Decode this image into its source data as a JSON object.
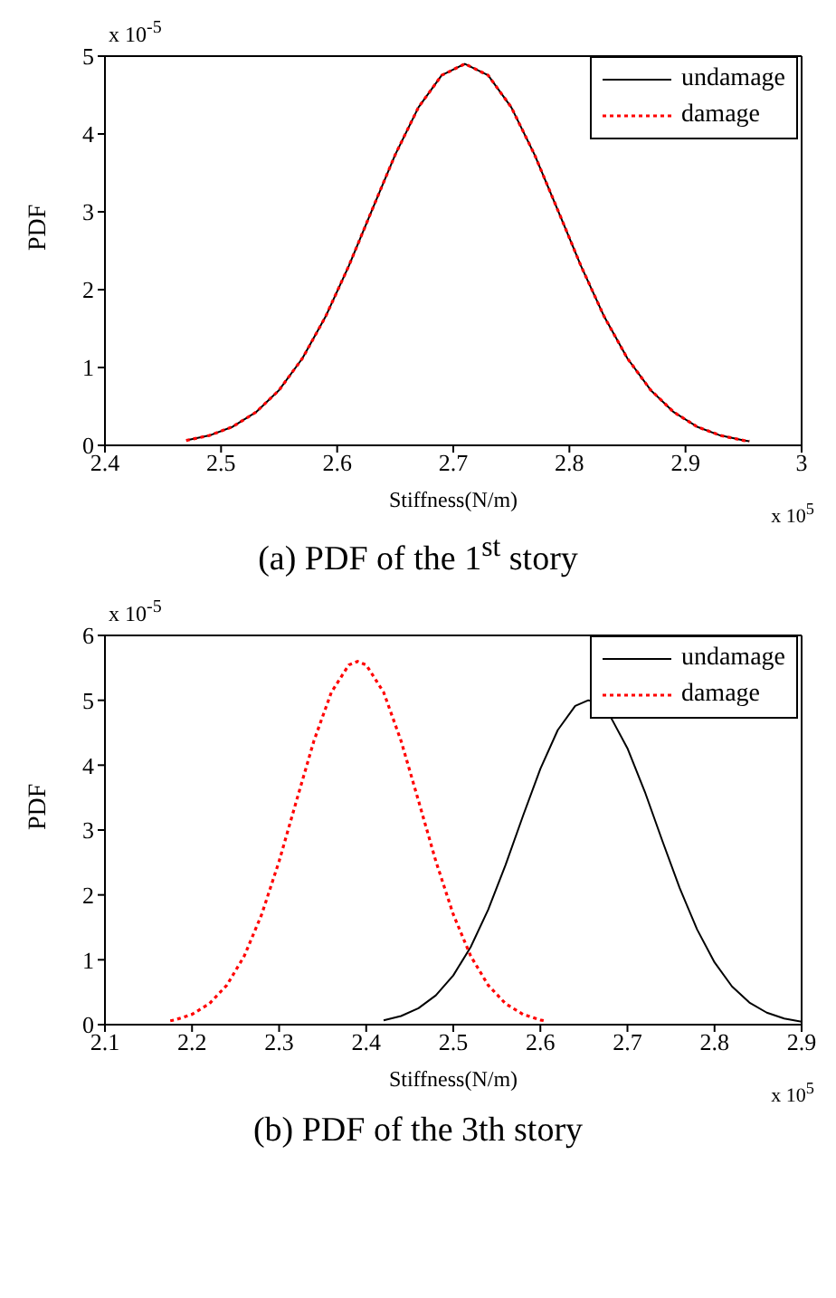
{
  "chart_data": [
    {
      "type": "line",
      "title": "(a) PDF of the 1$^{st}$ story",
      "xlabel": "Stiffness(N/m)",
      "ylabel": "PDF",
      "annotations": [
        "x 10$^{-5}$",
        "x 10$^{5}$"
      ],
      "xlim": [
        2.4,
        3
      ],
      "xticks": [
        2.4,
        2.5,
        2.6,
        2.7,
        2.8,
        2.9,
        3
      ],
      "ylim": [
        0,
        5
      ],
      "yticks": [
        0,
        1,
        2,
        3,
        4,
        5
      ],
      "grid": false,
      "legend": "top right",
      "series": [
        {
          "name": "undamage",
          "color": "#000000",
          "line_style": "solid",
          "x": [
            2.47,
            2.49,
            2.51,
            2.53,
            2.55,
            2.57,
            2.59,
            2.61,
            2.63,
            2.65,
            2.67,
            2.69,
            2.71,
            2.73,
            2.75,
            2.77,
            2.79,
            2.81,
            2.83,
            2.85,
            2.87,
            2.89,
            2.91,
            2.93,
            2.95,
            2.955
          ],
          "values": [
            0.063,
            0.127,
            0.239,
            0.425,
            0.71,
            1.116,
            1.653,
            2.304,
            3.023,
            3.734,
            4.342,
            4.754,
            4.9,
            4.754,
            4.342,
            3.734,
            3.023,
            2.304,
            1.653,
            1.116,
            0.71,
            0.425,
            0.239,
            0.127,
            0.063,
            0.053
          ]
        },
        {
          "name": "damage",
          "color": "#ff0000",
          "line_style": "dotted",
          "x": [
            2.47,
            2.49,
            2.51,
            2.53,
            2.55,
            2.57,
            2.59,
            2.61,
            2.63,
            2.65,
            2.67,
            2.69,
            2.71,
            2.73,
            2.75,
            2.77,
            2.79,
            2.81,
            2.83,
            2.85,
            2.87,
            2.89,
            2.91,
            2.93,
            2.95,
            2.955
          ],
          "values": [
            0.063,
            0.127,
            0.239,
            0.425,
            0.71,
            1.116,
            1.653,
            2.304,
            3.023,
            3.734,
            4.342,
            4.754,
            4.9,
            4.754,
            4.342,
            3.734,
            3.023,
            2.304,
            1.653,
            1.116,
            0.71,
            0.425,
            0.239,
            0.127,
            0.063,
            0.053
          ]
        }
      ]
    },
    {
      "type": "line",
      "title": "(b) PDF of the 3th story",
      "xlabel": "Stiffness(N/m)",
      "ylabel": "PDF",
      "annotations": [
        "x 10$^{-5}$",
        "x 10$^{5}$"
      ],
      "xlim": [
        2.1,
        2.9
      ],
      "xticks": [
        2.1,
        2.2,
        2.3,
        2.4,
        2.5,
        2.6,
        2.7,
        2.8,
        2.9
      ],
      "ylim": [
        0,
        6
      ],
      "yticks": [
        0,
        1,
        2,
        3,
        4,
        5,
        6
      ],
      "grid": false,
      "legend": "top right",
      "series": [
        {
          "name": "undamage",
          "color": "#000000",
          "line_style": "solid",
          "x": [
            2.42,
            2.44,
            2.46,
            2.48,
            2.5,
            2.52,
            2.54,
            2.56,
            2.58,
            2.6,
            2.62,
            2.64,
            2.655,
            2.66,
            2.68,
            2.7,
            2.72,
            2.74,
            2.76,
            2.78,
            2.8,
            2.82,
            2.84,
            2.86,
            2.88,
            2.9
          ],
          "values": [
            0.066,
            0.133,
            0.253,
            0.452,
            0.759,
            1.196,
            1.771,
            2.462,
            3.216,
            3.944,
            4.542,
            4.913,
            5.0,
            4.99,
            4.76,
            4.26,
            3.589,
            2.836,
            2.104,
            1.467,
            0.96,
            0.59,
            0.341,
            0.185,
            0.094,
            0.045
          ]
        },
        {
          "name": "damage",
          "color": "#ff0000",
          "line_style": "dotted",
          "x": [
            2.175,
            2.18,
            2.2,
            2.22,
            2.24,
            2.26,
            2.28,
            2.3,
            2.32,
            2.34,
            2.36,
            2.38,
            2.39,
            2.4,
            2.42,
            2.44,
            2.46,
            2.48,
            2.5,
            2.52,
            2.54,
            2.56,
            2.58,
            2.6,
            2.605
          ],
          "values": [
            0.059,
            0.072,
            0.159,
            0.324,
            0.609,
            1.058,
            1.699,
            2.519,
            3.454,
            4.376,
            5.124,
            5.545,
            5.6,
            5.545,
            5.124,
            4.376,
            3.454,
            2.519,
            1.699,
            1.058,
            0.609,
            0.324,
            0.159,
            0.072,
            0.059
          ]
        }
      ]
    }
  ]
}
